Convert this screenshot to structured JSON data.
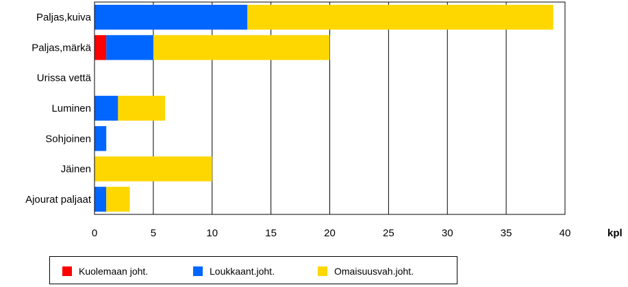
{
  "chart_data": {
    "type": "bar",
    "orientation": "horizontal",
    "stacked": true,
    "categories": [
      "Paljas,kuiva",
      "Paljas,märkä",
      "Urissa vettä",
      "Luminen",
      "Sohjoinen",
      "Jäinen",
      "Ajourat paljaat"
    ],
    "series": [
      {
        "name": "Kuolemaan joht.",
        "color": "#ff0000",
        "values": [
          0,
          1,
          0,
          0,
          0,
          0,
          0
        ]
      },
      {
        "name": "Loukkaant.joht.",
        "color": "#0066ff",
        "values": [
          13,
          4,
          0,
          2,
          1,
          0,
          1
        ]
      },
      {
        "name": "Omaisuusvah.joht.",
        "color": "#ffd700",
        "values": [
          26,
          15,
          0,
          4,
          0,
          10,
          2
        ]
      }
    ],
    "xlim": [
      0,
      40
    ],
    "xticks": [
      0,
      5,
      10,
      15,
      20,
      25,
      30,
      35,
      40
    ],
    "unit_label": "kpl",
    "grid": "vertical",
    "legend_position": "bottom"
  }
}
